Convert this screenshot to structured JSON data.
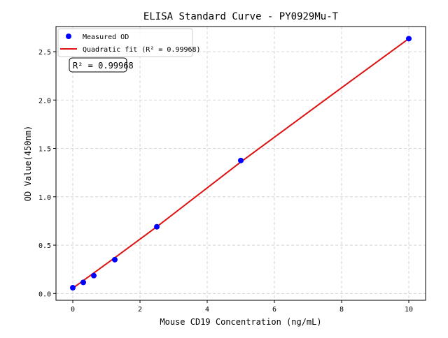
{
  "chart_data": {
    "type": "scatter",
    "title": "ELISA Standard Curve - PY0929Mu-T",
    "xlabel": "Mouse CD19 Concentration (ng/mL)",
    "ylabel": "OD Value(450nm)",
    "xlim": [
      -0.5,
      10.5
    ],
    "ylim": [
      -0.07,
      2.76
    ],
    "xticks": [
      0,
      2,
      4,
      6,
      8,
      10
    ],
    "yticks": [
      "0.0",
      "0.5",
      "1.0",
      "1.5",
      "2.0",
      "2.5"
    ],
    "grid": true,
    "legend_position": "top-left",
    "series": [
      {
        "name": "Measured OD",
        "kind": "scatter",
        "color": "#0000ff",
        "x": [
          0,
          0.3125,
          0.625,
          1.25,
          2.5,
          5,
          10
        ],
        "y": [
          0.06,
          0.115,
          0.185,
          0.35,
          0.69,
          1.375,
          2.635
        ]
      },
      {
        "name": "Quadratic fit (R² = 0.99968)",
        "kind": "line",
        "color": "#dd1111",
        "x": [
          0,
          1.25,
          2.5,
          5,
          7.5,
          10
        ],
        "y": [
          0.055,
          0.37,
          0.69,
          1.36,
          2.0,
          2.635
        ]
      }
    ],
    "annotation": "R² = 0.99968"
  }
}
